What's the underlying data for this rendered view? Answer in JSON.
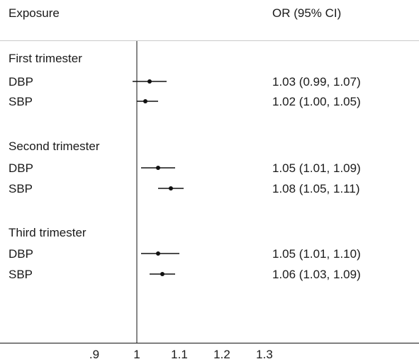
{
  "chart_data": {
    "type": "forest",
    "columns": {
      "label": "Exposure",
      "estimate": "OR (95% CI)"
    },
    "x_ticks": [
      {
        "value": 0.9,
        "label": ".9"
      },
      {
        "value": 1.0,
        "label": "1"
      },
      {
        "value": 1.1,
        "label": "1.1"
      },
      {
        "value": 1.2,
        "label": "1.2"
      },
      {
        "value": 1.3,
        "label": "1.3"
      }
    ],
    "reference_line": 1,
    "groups": [
      {
        "title": "First trimester",
        "rows": [
          {
            "label": "DBP",
            "or": 1.03,
            "lo": 0.99,
            "hi": 1.07,
            "text": "1.03 (0.99, 1.07)"
          },
          {
            "label": "SBP",
            "or": 1.02,
            "lo": 1.0,
            "hi": 1.05,
            "text": "1.02 (1.00, 1.05)"
          }
        ]
      },
      {
        "title": "Second trimester",
        "rows": [
          {
            "label": "DBP",
            "or": 1.05,
            "lo": 1.01,
            "hi": 1.09,
            "text": "1.05 (1.01, 1.09)"
          },
          {
            "label": "SBP",
            "or": 1.08,
            "lo": 1.05,
            "hi": 1.11,
            "text": "1.08 (1.05, 1.11)"
          }
        ]
      },
      {
        "title": "Third trimester",
        "rows": [
          {
            "label": "DBP",
            "or": 1.05,
            "lo": 1.01,
            "hi": 1.1,
            "text": "1.05 (1.01, 1.10)"
          },
          {
            "label": "SBP",
            "or": 1.06,
            "lo": 1.03,
            "hi": 1.09,
            "text": "1.06 (1.03, 1.09)"
          }
        ]
      }
    ]
  }
}
